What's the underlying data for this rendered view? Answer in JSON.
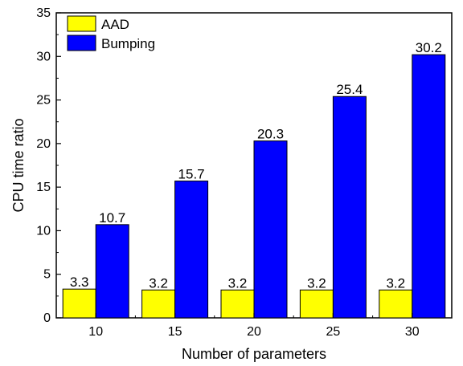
{
  "chart_data": {
    "type": "bar",
    "categories": [
      "10",
      "15",
      "20",
      "25",
      "30"
    ],
    "series": [
      {
        "name": "AAD",
        "values": [
          3.3,
          3.2,
          3.2,
          3.2,
          3.2
        ],
        "labels": [
          "3.3",
          "3.2",
          "3.2",
          "3.2",
          "3.2"
        ],
        "color": "#ffff00"
      },
      {
        "name": "Bumping",
        "values": [
          10.7,
          15.7,
          20.3,
          25.4,
          30.2
        ],
        "labels": [
          "10.7",
          "15.7",
          "20.3",
          "25.4",
          "30.2"
        ],
        "color": "#0000ff"
      }
    ],
    "xlabel": "Number of parameters",
    "ylabel": "CPU time ratio",
    "ylim": [
      0,
      35
    ],
    "yticks": [
      "0",
      "5",
      "10",
      "15",
      "20",
      "25",
      "30",
      "35"
    ],
    "legend": "top-left",
    "grid": false
  }
}
